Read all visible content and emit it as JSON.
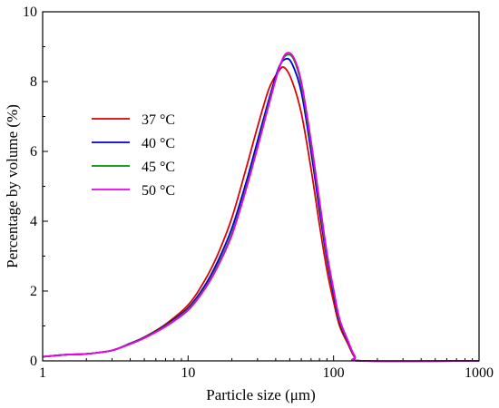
{
  "chart_data": {
    "type": "line",
    "title": "",
    "xlabel": "Particle size (μm)",
    "ylabel": "Percentage by volume (%)",
    "xscale": "log",
    "xlim": [
      1,
      1000
    ],
    "ylim": [
      0,
      10
    ],
    "x_ticks": [
      1,
      10,
      100,
      1000
    ],
    "x_tick_labels": [
      "1",
      "10",
      "100",
      "1000"
    ],
    "y_ticks": [
      0,
      2,
      4,
      6,
      8,
      10
    ],
    "y_tick_labels": [
      "0",
      "2",
      "4",
      "6",
      "8",
      "10"
    ],
    "grid": false,
    "legend_position": "left",
    "series": [
      {
        "name": "37 °C",
        "color": "#e00000",
        "points": [
          [
            1,
            0.12
          ],
          [
            1.5,
            0.18
          ],
          [
            2,
            0.2
          ],
          [
            3,
            0.3
          ],
          [
            4,
            0.5
          ],
          [
            5,
            0.68
          ],
          [
            7,
            1.05
          ],
          [
            10,
            1.6
          ],
          [
            13,
            2.3
          ],
          [
            16,
            3.05
          ],
          [
            20,
            4.1
          ],
          [
            25,
            5.5
          ],
          [
            30,
            6.7
          ],
          [
            36,
            7.8
          ],
          [
            42,
            8.3
          ],
          [
            46,
            8.4
          ],
          [
            52,
            8.0
          ],
          [
            60,
            7.1
          ],
          [
            70,
            5.5
          ],
          [
            80,
            3.9
          ],
          [
            90,
            2.6
          ],
          [
            100,
            1.7
          ],
          [
            110,
            1.0
          ],
          [
            125,
            0.5
          ],
          [
            140,
            0.1
          ],
          [
            160,
            0
          ],
          [
            1000,
            0
          ]
        ]
      },
      {
        "name": "40 °C",
        "color": "#0000d0",
        "points": [
          [
            1,
            0.12
          ],
          [
            1.5,
            0.18
          ],
          [
            2,
            0.2
          ],
          [
            3,
            0.3
          ],
          [
            4,
            0.5
          ],
          [
            5,
            0.67
          ],
          [
            7,
            1.02
          ],
          [
            10,
            1.52
          ],
          [
            13,
            2.15
          ],
          [
            16,
            2.85
          ],
          [
            20,
            3.8
          ],
          [
            25,
            5.1
          ],
          [
            30,
            6.3
          ],
          [
            36,
            7.5
          ],
          [
            42,
            8.4
          ],
          [
            47,
            8.65
          ],
          [
            52,
            8.5
          ],
          [
            60,
            7.7
          ],
          [
            70,
            6.0
          ],
          [
            80,
            4.3
          ],
          [
            90,
            2.9
          ],
          [
            100,
            1.9
          ],
          [
            110,
            1.1
          ],
          [
            125,
            0.55
          ],
          [
            140,
            0.12
          ],
          [
            160,
            0
          ],
          [
            1000,
            0
          ]
        ]
      },
      {
        "name": "45 °C",
        "color": "#009000",
        "points": [
          [
            1,
            0.12
          ],
          [
            1.5,
            0.18
          ],
          [
            2,
            0.2
          ],
          [
            3,
            0.3
          ],
          [
            4,
            0.49
          ],
          [
            5,
            0.66
          ],
          [
            7,
            1.0
          ],
          [
            10,
            1.48
          ],
          [
            13,
            2.08
          ],
          [
            16,
            2.75
          ],
          [
            20,
            3.65
          ],
          [
            25,
            4.95
          ],
          [
            30,
            6.15
          ],
          [
            36,
            7.4
          ],
          [
            42,
            8.35
          ],
          [
            47,
            8.75
          ],
          [
            53,
            8.65
          ],
          [
            60,
            7.9
          ],
          [
            70,
            6.2
          ],
          [
            80,
            4.5
          ],
          [
            90,
            3.0
          ],
          [
            100,
            2.0
          ],
          [
            110,
            1.15
          ],
          [
            125,
            0.58
          ],
          [
            140,
            0.13
          ],
          [
            160,
            0
          ],
          [
            1000,
            0
          ]
        ]
      },
      {
        "name": "50 °C",
        "color": "#ee00ee",
        "points": [
          [
            1,
            0.12
          ],
          [
            1.5,
            0.18
          ],
          [
            2,
            0.2
          ],
          [
            3,
            0.3
          ],
          [
            4,
            0.48
          ],
          [
            5,
            0.65
          ],
          [
            7,
            0.98
          ],
          [
            10,
            1.45
          ],
          [
            13,
            2.05
          ],
          [
            16,
            2.7
          ],
          [
            20,
            3.6
          ],
          [
            25,
            4.9
          ],
          [
            30,
            6.1
          ],
          [
            36,
            7.35
          ],
          [
            42,
            8.35
          ],
          [
            47,
            8.8
          ],
          [
            53,
            8.7
          ],
          [
            60,
            8.0
          ],
          [
            70,
            6.3
          ],
          [
            80,
            4.6
          ],
          [
            90,
            3.1
          ],
          [
            100,
            2.05
          ],
          [
            110,
            1.2
          ],
          [
            125,
            0.6
          ],
          [
            140,
            0.14
          ],
          [
            160,
            0
          ],
          [
            1000,
            0
          ]
        ]
      }
    ]
  }
}
